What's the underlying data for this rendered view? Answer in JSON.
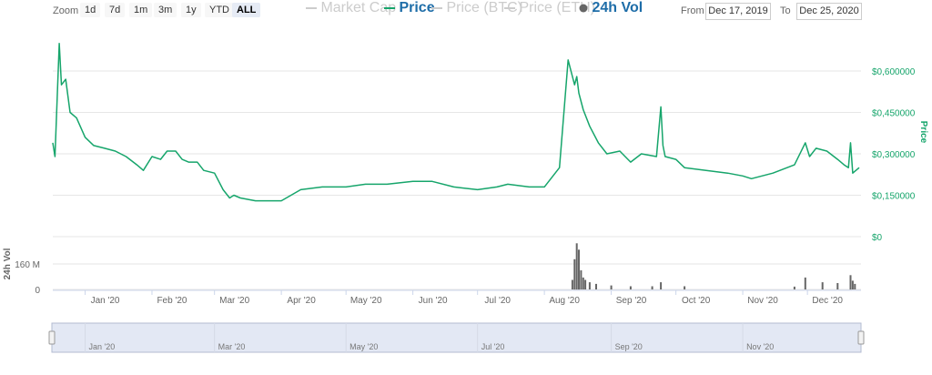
{
  "toolbar": {
    "zoom_label": "Zoom",
    "zoom_buttons": [
      "1d",
      "7d",
      "1m",
      "3m",
      "1y",
      "YTD",
      "ALL"
    ],
    "active_zoom": "ALL",
    "from_label": "From",
    "from_value": "Dec 17, 2019",
    "to_label": "To",
    "to_value": "Dec 25, 2020"
  },
  "colors": {
    "price": "#16a56b",
    "volume": "#666666",
    "grid": "#e6e6e6",
    "navigator_fill": "#e3e8f4"
  },
  "chart_data": {
    "type": "line",
    "x_ticks": [
      "Jan '20",
      "Feb '20",
      "Mar '20",
      "Apr '20",
      "May '20",
      "Jun '20",
      "Jul '20",
      "Aug '20",
      "Sep '20",
      "Oct '20",
      "Nov '20",
      "Dec '20"
    ],
    "price_axis": {
      "label": "Price",
      "ticks": [
        "$0",
        "$0,150000",
        "$0,300000",
        "$0,450000",
        "$0,600000"
      ],
      "ylim": [
        0,
        0.6
      ]
    },
    "volume_axis": {
      "label": "24h Vol",
      "ticks": [
        "0",
        "160 M"
      ]
    },
    "series": [
      {
        "name": "Price",
        "x": [
          "2019-12-17",
          "2019-12-18",
          "2019-12-20",
          "2019-12-21",
          "2019-12-23",
          "2019-12-25",
          "2019-12-28",
          "2020-01-01",
          "2020-01-05",
          "2020-01-10",
          "2020-01-15",
          "2020-01-20",
          "2020-01-25",
          "2020-01-28",
          "2020-02-01",
          "2020-02-05",
          "2020-02-08",
          "2020-02-12",
          "2020-02-15",
          "2020-02-18",
          "2020-02-22",
          "2020-02-25",
          "2020-03-01",
          "2020-03-05",
          "2020-03-08",
          "2020-03-10",
          "2020-03-13",
          "2020-03-20",
          "2020-04-01",
          "2020-04-10",
          "2020-04-20",
          "2020-05-01",
          "2020-05-10",
          "2020-05-20",
          "2020-06-01",
          "2020-06-10",
          "2020-06-20",
          "2020-07-01",
          "2020-07-10",
          "2020-07-15",
          "2020-07-25",
          "2020-08-01",
          "2020-08-08",
          "2020-08-12",
          "2020-08-15",
          "2020-08-16",
          "2020-08-17",
          "2020-08-19",
          "2020-08-22",
          "2020-08-26",
          "2020-08-30",
          "2020-09-05",
          "2020-09-10",
          "2020-09-15",
          "2020-09-22",
          "2020-09-24",
          "2020-09-25",
          "2020-09-26",
          "2020-10-01",
          "2020-10-05",
          "2020-10-15",
          "2020-10-25",
          "2020-11-01",
          "2020-11-05",
          "2020-11-15",
          "2020-11-25",
          "2020-11-30",
          "2020-12-02",
          "2020-12-05",
          "2020-12-10",
          "2020-12-15",
          "2020-12-18",
          "2020-12-20",
          "2020-12-21",
          "2020-12-22",
          "2020-12-25"
        ],
        "values": [
          0.34,
          0.29,
          0.7,
          0.55,
          0.57,
          0.45,
          0.43,
          0.36,
          0.33,
          0.32,
          0.31,
          0.29,
          0.26,
          0.24,
          0.29,
          0.28,
          0.31,
          0.31,
          0.28,
          0.27,
          0.27,
          0.24,
          0.23,
          0.17,
          0.14,
          0.15,
          0.14,
          0.13,
          0.13,
          0.17,
          0.18,
          0.18,
          0.19,
          0.19,
          0.2,
          0.2,
          0.18,
          0.17,
          0.18,
          0.19,
          0.18,
          0.18,
          0.25,
          0.64,
          0.55,
          0.58,
          0.52,
          0.46,
          0.4,
          0.34,
          0.3,
          0.31,
          0.27,
          0.3,
          0.29,
          0.47,
          0.33,
          0.29,
          0.28,
          0.25,
          0.24,
          0.23,
          0.22,
          0.21,
          0.23,
          0.26,
          0.34,
          0.29,
          0.32,
          0.31,
          0.28,
          0.26,
          0.25,
          0.34,
          0.23,
          0.25
        ]
      },
      {
        "name": "24h Vol",
        "x": [
          "2020-08-14",
          "2020-08-15",
          "2020-08-16",
          "2020-08-17",
          "2020-08-18",
          "2020-08-19",
          "2020-08-20",
          "2020-08-22",
          "2020-08-25",
          "2020-09-01",
          "2020-09-10",
          "2020-09-20",
          "2020-09-24",
          "2020-10-05",
          "2020-11-25",
          "2020-11-30",
          "2020-12-08",
          "2020-12-15",
          "2020-12-21",
          "2020-12-22",
          "2020-12-23"
        ],
        "values": [
          60,
          190,
          290,
          250,
          120,
          75,
          60,
          45,
          35,
          25,
          20,
          20,
          45,
          20,
          18,
          75,
          45,
          40,
          90,
          55,
          35
        ]
      }
    ]
  },
  "navigator": {
    "labels": [
      "Jan '20",
      "Mar '20",
      "May '20",
      "Jul '20",
      "Sep '20",
      "Nov '20"
    ]
  },
  "legend": [
    {
      "label": "Market Cap",
      "active": false
    },
    {
      "label": "Price",
      "active": true
    },
    {
      "label": "Price (BTC)",
      "active": false
    },
    {
      "label": "Price (ETH)",
      "active": false
    },
    {
      "label": "24h Vol",
      "active": true
    }
  ]
}
